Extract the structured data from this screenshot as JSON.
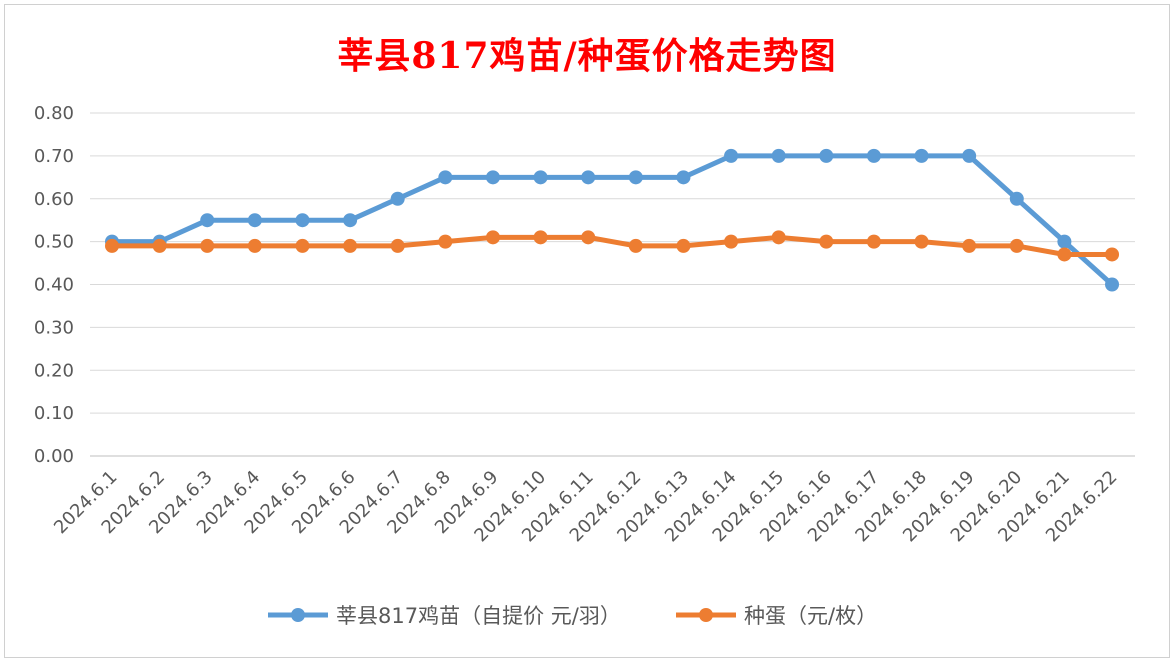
{
  "chart_data": {
    "type": "line",
    "title": "莘县817鸡苗/种蛋价格走势图",
    "xlabel": "",
    "ylabel": "",
    "ylim": [
      0,
      0.8
    ],
    "y_ticks": [
      "0.00",
      "0.10",
      "0.20",
      "0.30",
      "0.40",
      "0.50",
      "0.60",
      "0.70",
      "0.80"
    ],
    "grid": true,
    "legend_position": "bottom",
    "categories": [
      "2024.6.1",
      "2024.6.2",
      "2024.6.3",
      "2024.6.4",
      "2024.6.5",
      "2024.6.6",
      "2024.6.7",
      "2024.6.8",
      "2024.6.9",
      "2024.6.10",
      "2024.6.11",
      "2024.6.12",
      "2024.6.13",
      "2024.6.14",
      "2024.6.15",
      "2024.6.16",
      "2024.6.17",
      "2024.6.18",
      "2024.6.19",
      "2024.6.20",
      "2024.6.21",
      "2024.6.22"
    ],
    "series": [
      {
        "name": "莘县817鸡苗（自提价 元/羽）",
        "color": "#5b9bd5",
        "values": [
          0.5,
          0.5,
          0.55,
          0.55,
          0.55,
          0.55,
          0.6,
          0.65,
          0.65,
          0.65,
          0.65,
          0.65,
          0.65,
          0.7,
          0.7,
          0.7,
          0.7,
          0.7,
          0.7,
          0.6,
          0.5,
          0.4
        ]
      },
      {
        "name": "种蛋（元/枚）",
        "color": "#ed7d31",
        "values": [
          0.49,
          0.49,
          0.49,
          0.49,
          0.49,
          0.49,
          0.49,
          0.5,
          0.51,
          0.51,
          0.51,
          0.49,
          0.49,
          0.5,
          0.51,
          0.5,
          0.5,
          0.5,
          0.49,
          0.49,
          0.47,
          0.47
        ]
      }
    ]
  }
}
